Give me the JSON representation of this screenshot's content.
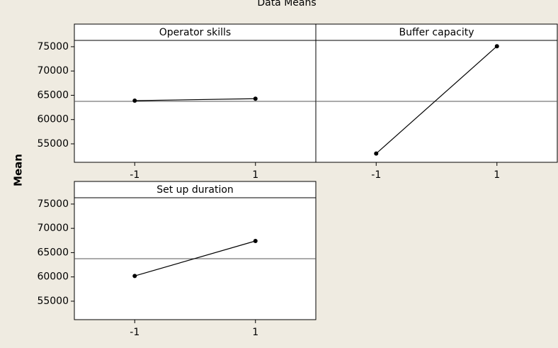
{
  "chart_data": {
    "type": "line",
    "title": "Data Means",
    "ylabel": "Mean",
    "ylim": [
      51200,
      76300
    ],
    "yticks": [
      55000,
      60000,
      65000,
      70000,
      75000
    ],
    "xlim": [
      -2,
      2
    ],
    "xticks": [
      -1,
      1
    ],
    "mean_line": 63750,
    "color": "#000000",
    "panels": [
      {
        "title": "Operator skills",
        "x": [
          -1,
          1
        ],
        "values": [
          63900,
          64300
        ]
      },
      {
        "title": "Buffer capacity",
        "x": [
          -1,
          1
        ],
        "values": [
          53000,
          75100
        ]
      },
      {
        "title": "Set up duration",
        "x": [
          -1,
          1
        ],
        "values": [
          60200,
          67400
        ]
      }
    ]
  }
}
